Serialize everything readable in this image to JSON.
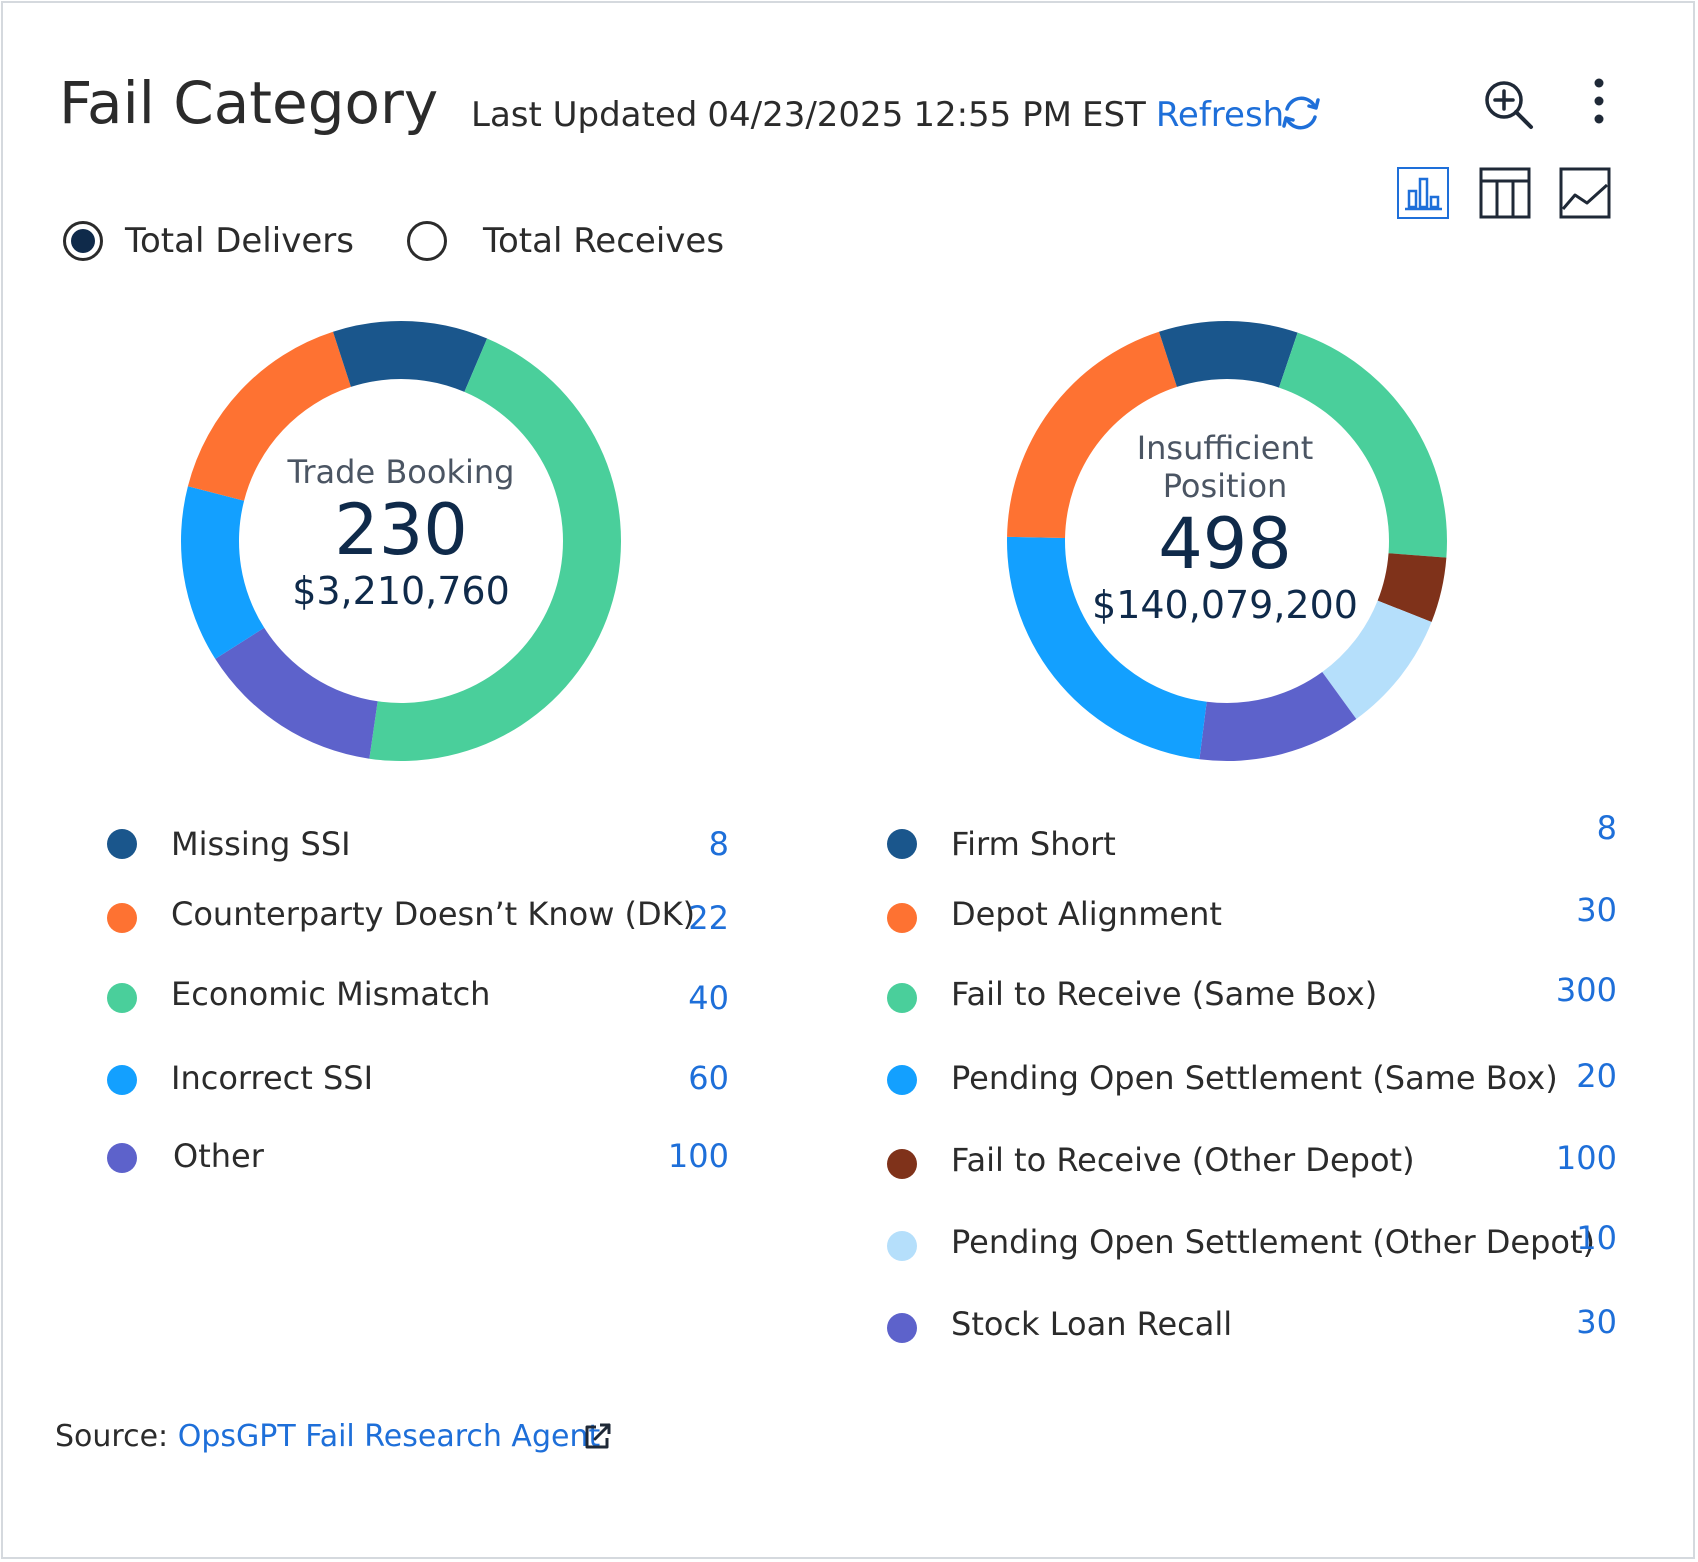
{
  "header": {
    "title": "Fail Category",
    "last_updated_label": "Last Updated",
    "date": "04/23/2025",
    "time": "12:55 PM",
    "timezone": "EST",
    "refresh_label": "Refresh",
    "icons": [
      "refresh-icon",
      "zoom-in-icon",
      "more-vertical-icon",
      "bar-chart-icon",
      "table-icon",
      "line-chart-icon"
    ]
  },
  "toggle": {
    "options": [
      {
        "label": "Total Delivers",
        "selected": true
      },
      {
        "label": "Total Receives",
        "selected": false
      }
    ]
  },
  "charts": [
    {
      "center_label": "Trade Booking",
      "center_count": "230",
      "center_amount": "$3,210,760",
      "legend": [
        {
          "label": "Missing SSI",
          "value": "8",
          "color": "#1a568c"
        },
        {
          "label": "Counterparty Doesn’t Know (DK)",
          "value": "22",
          "color": "#fe7232"
        },
        {
          "label": "Economic Mismatch",
          "value": "40",
          "color": "#4acf9b"
        },
        {
          "label": "Incorrect SSI",
          "value": "60",
          "color": "#13a0ff"
        },
        {
          "label": "Other",
          "value": "100",
          "color": "#5d62cb"
        }
      ],
      "segments": [
        {
          "start": 0.0,
          "end": 0.064,
          "color": "#1a568c"
        },
        {
          "start": 0.064,
          "end": 0.523,
          "color": "#4acf9b"
        },
        {
          "start": 0.523,
          "end": 0.66,
          "color": "#5d62cb"
        },
        {
          "start": 0.66,
          "end": 0.79,
          "color": "#13a0ff"
        },
        {
          "start": 0.79,
          "end": 0.95,
          "color": "#fe7232"
        },
        {
          "start": 0.95,
          "end": 1.0,
          "color": "#1a568c"
        }
      ]
    },
    {
      "center_label": "Insufficient Position",
      "center_count": "498",
      "center_amount": "$140,079,200",
      "legend": [
        {
          "label": "Firm Short",
          "value": "8",
          "color": "#1a568c"
        },
        {
          "label": "Depot Alignment",
          "value": "30",
          "color": "#fe7232"
        },
        {
          "label": "Fail to Receive (Same Box)",
          "value": "300",
          "color": "#4acf9b"
        },
        {
          "label": "Pending Open Settlement (Same Box)",
          "value": "20",
          "color": "#13a0ff"
        },
        {
          "label": "Fail to Receive (Other Depot)",
          "value": "100",
          "color": "#7f321a"
        },
        {
          "label": "Pending Open Settlement (Other Depot)",
          "value": "10",
          "color": "#b5dffb"
        },
        {
          "label": "Stock Loan Recall",
          "value": "30",
          "color": "#5d62cb"
        }
      ],
      "segments": [
        {
          "start": 0.0,
          "end": 0.052,
          "color": "#1a568c"
        },
        {
          "start": 0.052,
          "end": 0.262,
          "color": "#4acf9b"
        },
        {
          "start": 0.262,
          "end": 0.31,
          "color": "#7f321a"
        },
        {
          "start": 0.31,
          "end": 0.4,
          "color": "#b5dffb"
        },
        {
          "start": 0.4,
          "end": 0.52,
          "color": "#5d62cb"
        },
        {
          "start": 0.52,
          "end": 0.753,
          "color": "#13a0ff"
        },
        {
          "start": 0.753,
          "end": 0.95,
          "color": "#fe7232"
        },
        {
          "start": 0.95,
          "end": 1.0,
          "color": "#1a568c"
        }
      ]
    }
  ],
  "footer": {
    "source_label": "Source:",
    "source_link": "OpsGPT Fail Research Agent"
  }
}
